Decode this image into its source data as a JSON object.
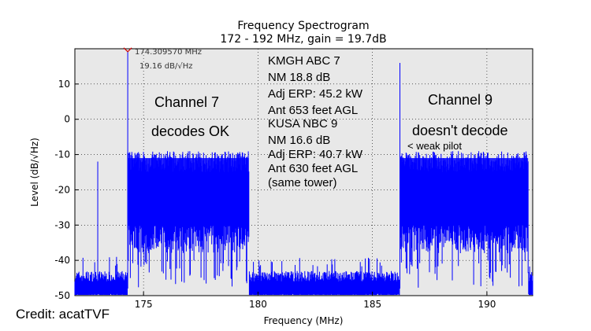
{
  "chart_data": {
    "type": "area",
    "title": "Frequency Spectrogram",
    "subtitle": "172 - 192 MHz, gain = 19.7dB",
    "xlabel": "Frequency (MHz)",
    "ylabel": "Level (dB/√Hz)",
    "xlim": [
      172,
      192
    ],
    "ylim": [
      -50,
      20
    ],
    "xticks": [
      175,
      180,
      185,
      190
    ],
    "yticks": [
      10,
      0,
      -10,
      -20,
      -30,
      -40,
      -50
    ],
    "grid": true,
    "peak_marker": {
      "x": 174.30957,
      "y": 19.16,
      "label_freq": "174.309570 MHz",
      "label_level": "19.16 dB/√Hz"
    },
    "series": [
      {
        "color": "#0000ff",
        "bands": [
          {
            "x_start": 174.3,
            "x_end": 179.6,
            "top": -12,
            "floor": -30
          },
          {
            "x_start": 186.2,
            "x_end": 191.8,
            "top": -12,
            "floor": -30
          }
        ],
        "noise_floor": -48,
        "spikes": [
          {
            "x": 173.0,
            "y": -12
          },
          {
            "x": 174.31,
            "y": 19.16
          },
          {
            "x": 186.2,
            "y": 16
          },
          {
            "x": 184.0,
            "y": -44
          },
          {
            "x": 181.5,
            "y": -44
          }
        ]
      }
    ]
  },
  "annotations": {
    "ch7_title": "Channel 7",
    "ch7_status": "decodes OK",
    "ch9_title": "Channel 9",
    "ch9_status": "doesn't decode",
    "ch9_note": "< weak pilot",
    "info_lines": [
      "KMGH ABC 7",
      "NM 18.8 dB",
      "Adj ERP: 45.2 kW",
      "Ant 653 feet AGL",
      "KUSA NBC 9",
      "NM 16.6 dB",
      "Adj ERP: 40.7 kW",
      "Ant 630 feet AGL",
      "(same tower)"
    ]
  },
  "credit": "Credit: acatTVF",
  "colors": {
    "plot_bg": "#e8e8e8",
    "signal": "#0000ff",
    "marker": "#cc0000"
  }
}
